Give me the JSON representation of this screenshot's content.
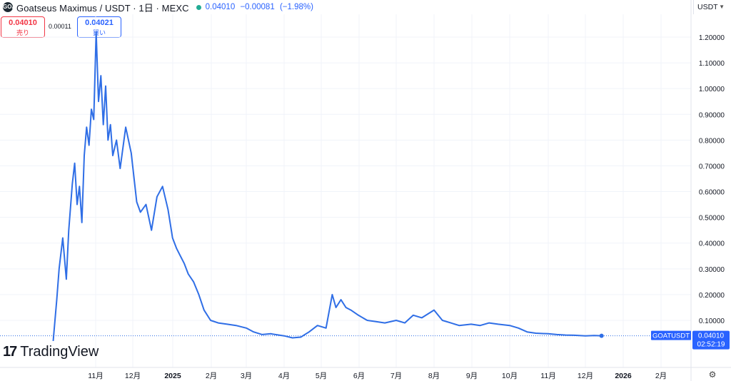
{
  "header": {
    "logo_text": "GOAT",
    "symbol_title": "Goatseus Maximus / USDT · 1日 · MEXC",
    "price": "0.04010",
    "change": "−0.00081",
    "change_pct": "(−1.98%)"
  },
  "trade": {
    "sell_price": "0.04010",
    "sell_label": "売り",
    "spread": "0.00011",
    "buy_price": "0.04021",
    "buy_label": "買い"
  },
  "currency": "USDT",
  "branding": "TradingView",
  "last_price_label": {
    "ticker": "GOATUSDT",
    "price": "0.04010",
    "countdown": "02:52:19"
  },
  "colors": {
    "line": "#2f6ee6",
    "price_tag_bg": "#2962ff",
    "grid": "#f0f3fa"
  },
  "chart_data": {
    "type": "line",
    "title": "",
    "xlabel": "",
    "ylabel": "",
    "ylim": [
      0,
      1.28
    ],
    "y_ticks": [
      "0.10000",
      "0.20000",
      "0.30000",
      "0.40000",
      "0.50000",
      "0.60000",
      "0.70000",
      "0.80000",
      "0.90000",
      "1.00000",
      "1.10000",
      "1.20000"
    ],
    "x_ticks": [
      "11月",
      "12月",
      "2025",
      "2月",
      "3月",
      "4月",
      "5月",
      "6月",
      "7月",
      "8月",
      "9月",
      "10月",
      "11月",
      "12月",
      "2026",
      "2月"
    ],
    "grid": true,
    "series": [
      {
        "x": [
          "2024-10-12",
          "2024-10-15",
          "2024-10-17",
          "2024-10-20",
          "2024-10-23",
          "2024-10-25",
          "2024-10-28",
          "2024-10-30",
          "2024-11-01",
          "2024-11-03",
          "2024-11-05",
          "2024-11-07",
          "2024-11-09",
          "2024-11-11",
          "2024-11-13",
          "2024-11-15",
          "2024-11-17",
          "2024-11-19",
          "2024-11-21",
          "2024-11-23",
          "2024-11-25",
          "2024-11-27",
          "2024-11-29",
          "2024-12-01",
          "2024-12-03",
          "2024-12-05",
          "2024-12-08",
          "2024-12-11",
          "2024-12-14",
          "2024-12-16",
          "2024-12-19",
          "2024-12-22",
          "2024-12-25",
          "2024-12-28",
          "2024-12-31",
          "2025-01-03",
          "2025-01-06",
          "2025-01-09",
          "2025-01-12",
          "2025-01-15",
          "2025-01-19",
          "2025-01-23",
          "2025-01-27",
          "2025-02-01",
          "2025-02-07",
          "2025-02-14",
          "2025-02-21",
          "2025-03-01",
          "2025-03-07",
          "2025-03-14",
          "2025-03-21",
          "2025-04-01",
          "2025-04-08",
          "2025-04-15",
          "2025-04-22",
          "2025-04-29",
          "2025-05-06",
          "2025-05-11",
          "2025-05-14",
          "2025-05-18",
          "2025-05-22",
          "2025-05-26",
          "2025-06-01",
          "2025-06-08",
          "2025-06-15",
          "2025-06-22",
          "2025-07-01",
          "2025-07-08",
          "2025-07-15",
          "2025-07-22",
          "2025-08-01",
          "2025-08-08",
          "2025-08-15",
          "2025-08-22",
          "2025-09-01",
          "2025-09-08",
          "2025-09-15",
          "2025-09-22",
          "2025-10-01",
          "2025-10-08",
          "2025-10-15",
          "2025-10-22",
          "2025-11-01",
          "2025-11-08",
          "2025-11-15",
          "2025-11-22",
          "2025-12-01",
          "2025-12-08",
          "2025-12-14"
        ],
        "values": [
          0.02,
          0.18,
          0.3,
          0.42,
          0.26,
          0.45,
          0.63,
          0.71,
          0.55,
          0.62,
          0.48,
          0.74,
          0.85,
          0.78,
          0.92,
          0.88,
          1.22,
          0.95,
          1.05,
          0.86,
          1.01,
          0.8,
          0.86,
          0.74,
          0.8,
          0.69,
          0.85,
          0.75,
          0.56,
          0.52,
          0.55,
          0.45,
          0.58,
          0.62,
          0.53,
          0.42,
          0.38,
          0.35,
          0.32,
          0.28,
          0.25,
          0.2,
          0.14,
          0.1,
          0.09,
          0.085,
          0.08,
          0.07,
          0.055,
          0.045,
          0.048,
          0.04,
          0.032,
          0.035,
          0.055,
          0.08,
          0.07,
          0.2,
          0.15,
          0.18,
          0.15,
          0.14,
          0.12,
          0.1,
          0.095,
          0.09,
          0.1,
          0.09,
          0.12,
          0.11,
          0.14,
          0.1,
          0.09,
          0.08,
          0.085,
          0.08,
          0.09,
          0.085,
          0.08,
          0.07,
          0.055,
          0.05,
          0.048,
          0.045,
          0.043,
          0.042,
          0.04,
          0.041,
          0.0401
        ]
      }
    ]
  }
}
